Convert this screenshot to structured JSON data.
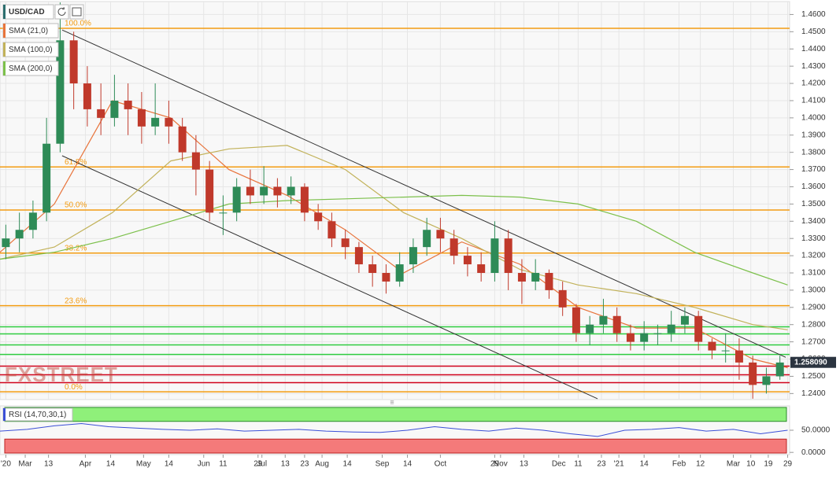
{
  "chart_data": {
    "type": "candlestick",
    "symbol": "USD/CAD",
    "watermark": "FXSTREET",
    "last_price": {
      "value": 1.25809,
      "label": "1.258090"
    },
    "up_color": "#2e8b57",
    "down_color": "#c0392b",
    "xlim": [
      -13,
      394
    ],
    "xticks": [
      {
        "value": -10,
        "label": "'20"
      },
      {
        "value": 0,
        "label": "Mar"
      },
      {
        "value": 12,
        "label": "13"
      },
      {
        "value": 31,
        "label": "Apr"
      },
      {
        "value": 44,
        "label": "14"
      },
      {
        "value": 61,
        "label": "May"
      },
      {
        "value": 74,
        "label": "14"
      },
      {
        "value": 92,
        "label": "Jun"
      },
      {
        "value": 102,
        "label": "11"
      },
      {
        "value": 120,
        "label": "29"
      },
      {
        "value": 122,
        "label": "Jul"
      },
      {
        "value": 134,
        "label": "13"
      },
      {
        "value": 144,
        "label": "23"
      },
      {
        "value": 153,
        "label": "Aug"
      },
      {
        "value": 166,
        "label": "14"
      },
      {
        "value": 184,
        "label": "Sep"
      },
      {
        "value": 197,
        "label": "14"
      },
      {
        "value": 214,
        "label": "Oct"
      },
      {
        "value": 242,
        "label": "29"
      },
      {
        "value": 245,
        "label": "Nov"
      },
      {
        "value": 257,
        "label": "13"
      },
      {
        "value": 275,
        "label": "Dec"
      },
      {
        "value": 285,
        "label": "11"
      },
      {
        "value": 297,
        "label": "23"
      },
      {
        "value": 306,
        "label": "'21"
      },
      {
        "value": 319,
        "label": "14"
      },
      {
        "value": 337,
        "label": "Feb"
      },
      {
        "value": 348,
        "label": "12"
      },
      {
        "value": 365,
        "label": "Mar"
      },
      {
        "value": 374,
        "label": "10"
      },
      {
        "value": 383,
        "label": "19"
      },
      {
        "value": 393,
        "label": "29"
      }
    ],
    "ylim": [
      1.2365,
      1.4675
    ],
    "yticks": [
      {
        "value": 1.24,
        "label": "1.2400"
      },
      {
        "value": 1.25,
        "label": "1.2500"
      },
      {
        "value": 1.26,
        "label": "1.2600"
      },
      {
        "value": 1.27,
        "label": "1.2700"
      },
      {
        "value": 1.28,
        "label": "1.2800"
      },
      {
        "value": 1.29,
        "label": "1.2900"
      },
      {
        "value": 1.3,
        "label": "1.3000"
      },
      {
        "value": 1.31,
        "label": "1.3100"
      },
      {
        "value": 1.32,
        "label": "1.3200"
      },
      {
        "value": 1.33,
        "label": "1.3300"
      },
      {
        "value": 1.34,
        "label": "1.3400"
      },
      {
        "value": 1.35,
        "label": "1.3500"
      },
      {
        "value": 1.36,
        "label": "1.3600"
      },
      {
        "value": 1.37,
        "label": "1.3700"
      },
      {
        "value": 1.38,
        "label": "1.3800"
      },
      {
        "value": 1.39,
        "label": "1.3900"
      },
      {
        "value": 1.4,
        "label": "1.4000"
      },
      {
        "value": 1.41,
        "label": "1.4100"
      },
      {
        "value": 1.42,
        "label": "1.4200"
      },
      {
        "value": 1.43,
        "label": "1.4300"
      },
      {
        "value": 1.44,
        "label": "1.4400"
      },
      {
        "value": 1.45,
        "label": "1.4500"
      },
      {
        "value": 1.46,
        "label": "1.4600"
      }
    ],
    "grid": true,
    "candles": {
      "x": [
        -10,
        -3,
        4,
        11,
        18,
        25,
        32,
        39,
        46,
        53,
        60,
        67,
        74,
        81,
        88,
        95,
        102,
        109,
        116,
        123,
        130,
        137,
        144,
        151,
        158,
        165,
        172,
        179,
        186,
        193,
        200,
        207,
        214,
        221,
        228,
        235,
        242,
        249,
        256,
        263,
        270,
        277,
        284,
        291,
        298,
        305,
        312,
        319,
        326,
        333,
        340,
        347,
        354,
        361,
        368,
        375,
        382,
        389
      ],
      "open": [
        1.325,
        1.33,
        1.335,
        1.345,
        1.385,
        1.445,
        1.42,
        1.405,
        1.4,
        1.41,
        1.405,
        1.395,
        1.4,
        1.395,
        1.38,
        1.37,
        1.345,
        1.345,
        1.36,
        1.355,
        1.36,
        1.355,
        1.36,
        1.345,
        1.34,
        1.33,
        1.325,
        1.315,
        1.31,
        1.305,
        1.315,
        1.325,
        1.335,
        1.33,
        1.32,
        1.315,
        1.31,
        1.33,
        1.31,
        1.305,
        1.31,
        1.3,
        1.29,
        1.275,
        1.28,
        1.285,
        1.275,
        1.27,
        1.275,
        1.275,
        1.28,
        1.285,
        1.27,
        1.265,
        1.265,
        1.258,
        1.245,
        1.25
      ],
      "high": [
        1.338,
        1.345,
        1.352,
        1.4,
        1.467,
        1.45,
        1.43,
        1.42,
        1.425,
        1.42,
        1.415,
        1.42,
        1.41,
        1.4,
        1.39,
        1.375,
        1.355,
        1.365,
        1.37,
        1.372,
        1.365,
        1.366,
        1.362,
        1.35,
        1.345,
        1.335,
        1.328,
        1.32,
        1.315,
        1.322,
        1.33,
        1.342,
        1.342,
        1.335,
        1.325,
        1.322,
        1.34,
        1.335,
        1.318,
        1.318,
        1.312,
        1.305,
        1.292,
        1.285,
        1.295,
        1.29,
        1.28,
        1.282,
        1.28,
        1.288,
        1.29,
        1.288,
        1.272,
        1.275,
        1.272,
        1.262,
        1.255,
        1.262
      ],
      "low": [
        1.318,
        1.322,
        1.33,
        1.34,
        1.38,
        1.405,
        1.395,
        1.39,
        1.395,
        1.39,
        1.385,
        1.39,
        1.385,
        1.375,
        1.355,
        1.34,
        1.332,
        1.34,
        1.35,
        1.35,
        1.348,
        1.35,
        1.34,
        1.335,
        1.325,
        1.318,
        1.31,
        1.302,
        1.298,
        1.302,
        1.31,
        1.32,
        1.322,
        1.315,
        1.308,
        1.305,
        1.305,
        1.3,
        1.292,
        1.3,
        1.295,
        1.285,
        1.27,
        1.268,
        1.275,
        1.27,
        1.265,
        1.265,
        1.268,
        1.27,
        1.275,
        1.265,
        1.26,
        1.258,
        1.248,
        1.237,
        1.24,
        1.248
      ],
      "close": [
        1.33,
        1.335,
        1.345,
        1.385,
        1.445,
        1.42,
        1.405,
        1.4,
        1.41,
        1.405,
        1.395,
        1.4,
        1.395,
        1.38,
        1.37,
        1.345,
        1.345,
        1.36,
        1.355,
        1.36,
        1.355,
        1.36,
        1.345,
        1.34,
        1.33,
        1.325,
        1.315,
        1.31,
        1.305,
        1.315,
        1.325,
        1.335,
        1.33,
        1.32,
        1.315,
        1.31,
        1.33,
        1.31,
        1.305,
        1.31,
        1.3,
        1.29,
        1.275,
        1.28,
        1.285,
        1.275,
        1.27,
        1.275,
        1.275,
        1.28,
        1.285,
        1.27,
        1.265,
        1.265,
        1.258,
        1.245,
        1.25,
        1.258
      ]
    },
    "sma_x": [
      -13,
      15,
      45,
      75,
      105,
      135,
      165,
      195,
      225,
      255,
      285,
      315,
      345,
      375,
      393
    ],
    "sma": [
      {
        "name": "SMA (21,0)",
        "color": "#e8743b",
        "values": [
          1.322,
          1.35,
          1.41,
          1.4,
          1.37,
          1.355,
          1.335,
          1.31,
          1.328,
          1.315,
          1.29,
          1.278,
          1.278,
          1.26,
          1.255
        ]
      },
      {
        "name": "SMA (100,0)",
        "color": "#c2b25a",
        "values": [
          1.318,
          1.325,
          1.345,
          1.375,
          1.382,
          1.384,
          1.37,
          1.345,
          1.33,
          1.312,
          1.303,
          1.298,
          1.29,
          1.28,
          1.277
        ]
      },
      {
        "name": "SMA (200,0)",
        "color": "#7cc04b",
        "values": [
          1.318,
          1.322,
          1.33,
          1.34,
          1.35,
          1.352,
          1.353,
          1.354,
          1.355,
          1.354,
          1.35,
          1.34,
          1.322,
          1.31,
          1.303
        ]
      }
    ],
    "trend_lines": [
      {
        "x": [
          19,
          392
        ],
        "values": [
          1.451,
          1.261
        ]
      },
      {
        "x": [
          19,
          295
        ],
        "values": [
          1.378,
          1.237
        ]
      }
    ],
    "fib_color": "#f39c12",
    "fib_levels": [
      {
        "label": "100.0%",
        "value": 1.452
      },
      {
        "label": "61.8%",
        "value": 1.3715
      },
      {
        "label": "50.0%",
        "value": 1.3465
      },
      {
        "label": "38.2%",
        "value": 1.3215
      },
      {
        "label": "23.6%",
        "value": 1.291
      },
      {
        "label": "0.0%",
        "value": 1.241
      }
    ],
    "green_levels": {
      "color": "#2ecc40",
      "values": [
        1.2787,
        1.2746,
        1.2682,
        1.2627
      ]
    },
    "red_levels": {
      "color": "#d0021b",
      "values": [
        1.2559,
        1.2509,
        1.2463
      ]
    },
    "rsi": {
      "name": "RSI (14,70,30,1)",
      "color": "#3b4fd6",
      "overbought": 70,
      "oversold": 30,
      "ylim": [
        -5,
        105
      ],
      "yticks": [
        {
          "value": 50,
          "label": "50.0000"
        },
        {
          "value": 0,
          "label": "0.0000"
        }
      ],
      "x": [
        -13,
        1,
        15,
        29,
        43,
        57,
        71,
        85,
        99,
        113,
        127,
        141,
        155,
        169,
        183,
        197,
        211,
        225,
        239,
        253,
        267,
        281,
        295,
        309,
        323,
        337,
        351,
        365,
        379,
        393
      ],
      "values": [
        48,
        52,
        60,
        65,
        58,
        55,
        52,
        50,
        53,
        48,
        50,
        52,
        48,
        46,
        45,
        50,
        58,
        52,
        48,
        55,
        50,
        42,
        36,
        50,
        52,
        56,
        48,
        52,
        42,
        50
      ]
    }
  }
}
